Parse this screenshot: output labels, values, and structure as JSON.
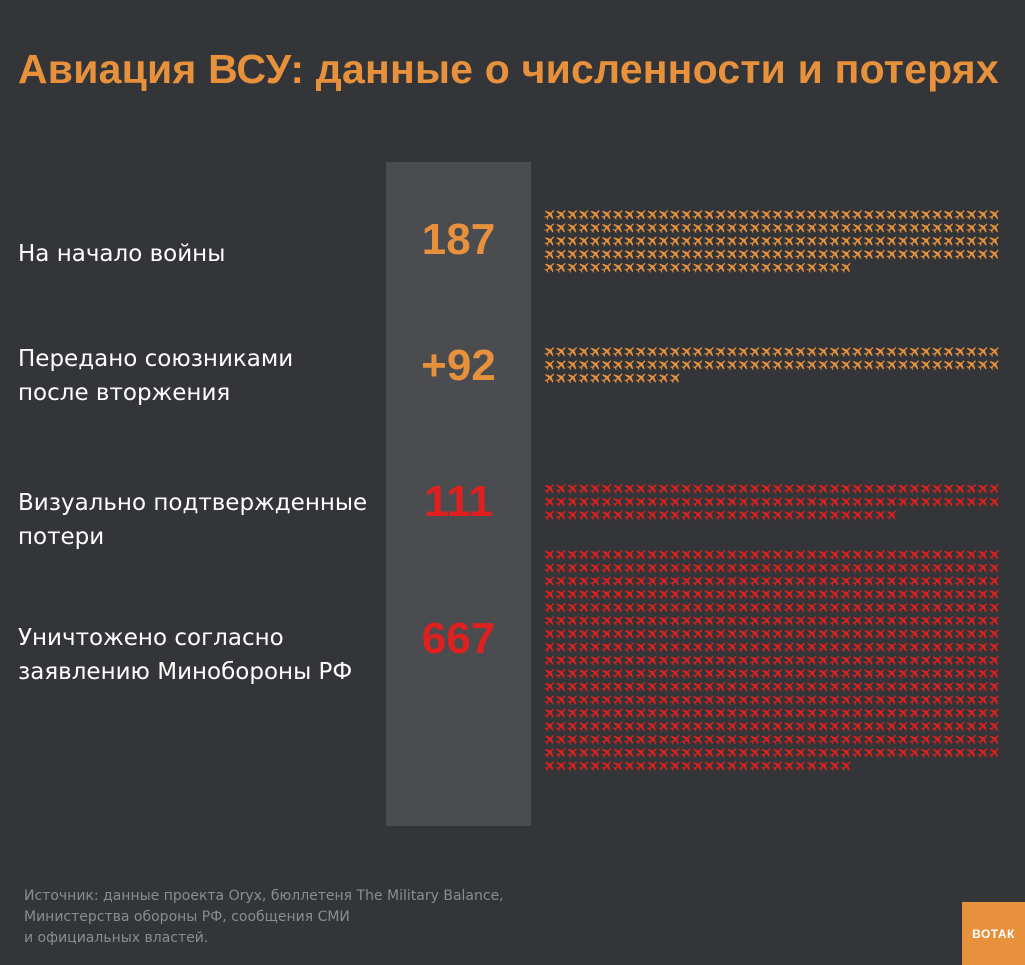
{
  "title": "Авиация ВСУ: данные о численности и потерях",
  "rows": [
    {
      "label_lines": [
        "На начало войны"
      ],
      "value_text": "187",
      "count": 187,
      "color": "#e8913d"
    },
    {
      "label_lines": [
        "Передано союзниками",
        "после вторжения"
      ],
      "value_text": "+92",
      "count": 92,
      "color": "#e8913d"
    },
    {
      "label_lines": [
        "Визуально подтвержденные",
        "потери"
      ],
      "value_text": "111",
      "count": 111,
      "color": "#e0201e"
    },
    {
      "label_lines": [
        "Уничтожено согласно",
        "заявлению Минобороны РФ"
      ],
      "value_text": "667",
      "count": 667,
      "color": "#e0201e"
    }
  ],
  "source_lines": [
    "Источник: данные проекта Oryx, бюллетеня The Military Balance,",
    "Министерства обороны РФ, сообщения СМИ",
    "и официальных властей."
  ],
  "logo": "ВОТАК",
  "colors": {
    "background": "#333538",
    "accent": "#e8913d",
    "loss": "#e0201e",
    "column": "#4a4c50"
  },
  "icon": "airplane-icon",
  "chart_data": {
    "type": "pictogram",
    "categories": [
      "На начало войны",
      "Передано союзниками после вторжения",
      "Визуально подтвержденные потери",
      "Уничтожено согласно заявлению Минобороны РФ"
    ],
    "values": [
      187,
      92,
      111,
      667
    ],
    "units_per_icon": 1
  }
}
